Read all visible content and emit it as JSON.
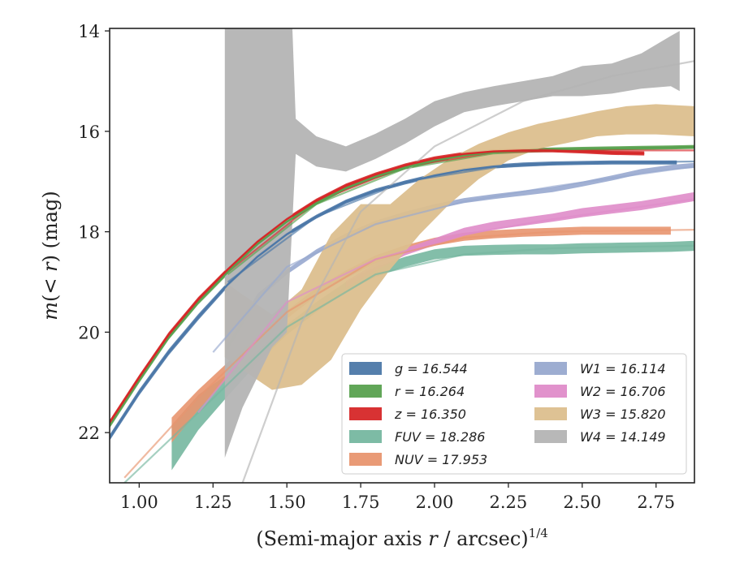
{
  "chart_data": {
    "type": "line",
    "xlabel": "(Semi-major axis r / arcsec)^1/4",
    "ylabel": "m(<r) (mag)",
    "xlim": [
      0.9,
      2.88
    ],
    "ylim": [
      23.0,
      13.95
    ],
    "y_inverted": true,
    "grid": false,
    "legend_placement": "lower-right",
    "xticks": [
      "1.00",
      "1.25",
      "1.50",
      "1.75",
      "2.00",
      "2.25",
      "2.50",
      "2.75"
    ],
    "xtick_values": [
      1.0,
      1.25,
      1.5,
      1.75,
      2.0,
      2.25,
      2.5,
      2.75
    ],
    "yticks": [
      "14",
      "16",
      "18",
      "20",
      "22"
    ],
    "ytick_values": [
      14,
      16,
      18,
      20,
      22
    ],
    "series": [
      {
        "name": "g = 16.544",
        "color": "#4c78a8",
        "x": [
          0.9,
          1.0,
          1.1,
          1.2,
          1.3,
          1.4,
          1.5,
          1.6,
          1.7,
          1.8,
          1.9,
          2.0,
          2.1,
          2.2,
          2.3,
          2.4,
          2.5,
          2.6,
          2.7,
          2.82
        ],
        "y": [
          22.1,
          21.2,
          20.4,
          19.7,
          19.05,
          18.5,
          18.05,
          17.7,
          17.4,
          17.18,
          17.02,
          16.88,
          16.77,
          16.7,
          16.66,
          16.64,
          16.63,
          16.62,
          16.62,
          16.62
        ],
        "band": [
          0.06,
          0.06,
          0.06,
          0.06,
          0.05,
          0.05,
          0.04,
          0.04,
          0.04,
          0.04,
          0.04,
          0.04,
          0.04,
          0.04,
          0.04,
          0.04,
          0.04,
          0.04,
          0.04,
          0.04
        ],
        "model": {
          "x": [
            1.3,
            1.6,
            1.9,
            2.2,
            2.5,
            2.88
          ],
          "y": [
            19.0,
            17.7,
            17.0,
            16.72,
            16.63,
            16.6
          ]
        }
      },
      {
        "name": "r = 16.264",
        "color": "#59a14f",
        "x": [
          0.9,
          1.0,
          1.1,
          1.2,
          1.3,
          1.4,
          1.5,
          1.6,
          1.7,
          1.8,
          1.9,
          2.0,
          2.1,
          2.2,
          2.3,
          2.4,
          2.5,
          2.6,
          2.7,
          2.8,
          2.88
        ],
        "y": [
          21.85,
          20.95,
          20.1,
          19.4,
          18.8,
          18.25,
          17.8,
          17.43,
          17.13,
          16.9,
          16.72,
          16.58,
          16.48,
          16.42,
          16.38,
          16.36,
          16.35,
          16.34,
          16.33,
          16.32,
          16.31
        ],
        "band": [
          0.06,
          0.06,
          0.05,
          0.05,
          0.05,
          0.04,
          0.04,
          0.04,
          0.04,
          0.04,
          0.04,
          0.04,
          0.04,
          0.04,
          0.04,
          0.04,
          0.04,
          0.04,
          0.04,
          0.04,
          0.04
        ],
        "model": {
          "x": [
            1.3,
            1.6,
            1.9,
            2.2,
            2.5,
            2.88
          ],
          "y": [
            18.85,
            17.45,
            16.74,
            16.44,
            16.36,
            16.32
          ]
        }
      },
      {
        "name": "z = 16.350",
        "color": "#d62728",
        "x": [
          0.9,
          1.0,
          1.1,
          1.2,
          1.3,
          1.4,
          1.5,
          1.6,
          1.7,
          1.8,
          1.9,
          2.0,
          2.1,
          2.2,
          2.3,
          2.4,
          2.5,
          2.6,
          2.71
        ],
        "y": [
          21.8,
          20.9,
          20.05,
          19.35,
          18.75,
          18.2,
          17.75,
          17.38,
          17.08,
          16.86,
          16.68,
          16.54,
          16.45,
          16.4,
          16.38,
          16.38,
          16.4,
          16.43,
          16.44
        ],
        "band": [
          0.05,
          0.05,
          0.05,
          0.05,
          0.04,
          0.04,
          0.04,
          0.04,
          0.04,
          0.04,
          0.04,
          0.04,
          0.04,
          0.04,
          0.04,
          0.04,
          0.04,
          0.04,
          0.04
        ],
        "model": {
          "x": [
            1.3,
            1.6,
            1.9,
            2.2,
            2.5,
            2.88
          ],
          "y": [
            18.8,
            17.4,
            16.7,
            16.42,
            16.38,
            16.38
          ]
        }
      },
      {
        "name": "FUV = 18.286",
        "color": "#76b7a0",
        "x": [
          1.11,
          1.2,
          1.3,
          1.4,
          1.5,
          1.6,
          1.7,
          1.8,
          1.9,
          2.0,
          2.1,
          2.2,
          2.3,
          2.4,
          2.5,
          2.6,
          2.7,
          2.8,
          2.88
        ],
        "y": [
          22.3,
          21.6,
          21.05,
          20.5,
          19.95,
          19.5,
          19.1,
          18.8,
          18.6,
          18.45,
          18.38,
          18.36,
          18.35,
          18.35,
          18.33,
          18.32,
          18.31,
          18.3,
          18.28
        ],
        "band": [
          0.45,
          0.35,
          0.22,
          0.12,
          0.1,
          0.1,
          0.1,
          0.1,
          0.1,
          0.1,
          0.1,
          0.1,
          0.1,
          0.1,
          0.1,
          0.1,
          0.1,
          0.1,
          0.1
        ],
        "model": {
          "x": [
            0.95,
            1.2,
            1.5,
            1.8,
            2.1,
            2.4,
            2.88
          ],
          "y": [
            23.0,
            21.6,
            19.9,
            18.85,
            18.45,
            18.33,
            18.28
          ]
        }
      },
      {
        "name": "NUV = 17.953",
        "color": "#e8956f",
        "x": [
          1.11,
          1.2,
          1.3,
          1.4,
          1.5,
          1.6,
          1.7,
          1.8,
          1.9,
          2.0,
          2.1,
          2.2,
          2.3,
          2.4,
          2.5,
          2.6,
          2.7,
          2.8
        ],
        "y": [
          21.95,
          21.35,
          20.75,
          20.2,
          19.65,
          19.2,
          18.85,
          18.55,
          18.35,
          18.2,
          18.1,
          18.05,
          18.02,
          18.0,
          17.98,
          17.98,
          17.98,
          17.98
        ],
        "band": [
          0.25,
          0.2,
          0.15,
          0.1,
          0.08,
          0.08,
          0.08,
          0.08,
          0.08,
          0.08,
          0.08,
          0.08,
          0.08,
          0.08,
          0.08,
          0.08,
          0.08,
          0.08
        ],
        "model": {
          "x": [
            0.95,
            1.2,
            1.5,
            1.8,
            2.1,
            2.4,
            2.88
          ],
          "y": [
            22.9,
            21.3,
            19.6,
            18.55,
            18.12,
            18.0,
            17.96
          ]
        }
      },
      {
        "name": "W1 = 16.114",
        "color": "#98a9cf",
        "x": [
          1.3,
          1.4,
          1.5,
          1.6,
          1.7,
          1.8,
          1.9,
          2.0,
          2.1,
          2.2,
          2.3,
          2.4,
          2.5,
          2.6,
          2.7,
          2.8,
          2.88
        ],
        "y": [
          20.3,
          19.3,
          18.8,
          18.4,
          18.08,
          17.83,
          17.65,
          17.5,
          17.38,
          17.3,
          17.23,
          17.16,
          17.05,
          16.93,
          16.8,
          16.72,
          16.68
        ],
        "band": [
          0.06,
          0.06,
          0.05,
          0.05,
          0.05,
          0.05,
          0.05,
          0.05,
          0.05,
          0.05,
          0.05,
          0.05,
          0.05,
          0.05,
          0.05,
          0.05,
          0.05
        ],
        "model": {
          "x": [
            1.25,
            1.5,
            1.8,
            2.1,
            2.4,
            2.7,
            2.88
          ],
          "y": [
            20.4,
            18.7,
            17.85,
            17.4,
            17.1,
            16.85,
            16.7
          ]
        }
      },
      {
        "name": "W2 = 16.706",
        "color": "#df8cc9",
        "x": [
          1.7,
          1.8,
          1.9,
          2.0,
          2.1,
          2.2,
          2.3,
          2.4,
          2.5,
          2.6,
          2.7,
          2.8,
          2.88
        ],
        "y": [
          19.05,
          18.7,
          18.4,
          18.2,
          18.0,
          17.88,
          17.8,
          17.72,
          17.62,
          17.55,
          17.48,
          17.38,
          17.3
        ],
        "band": [
          0.07,
          0.07,
          0.07,
          0.07,
          0.08,
          0.08,
          0.08,
          0.08,
          0.09,
          0.09,
          0.09,
          0.09,
          0.09
        ],
        "model": {
          "x": [
            1.2,
            1.5,
            1.8,
            2.1,
            2.4,
            2.7,
            2.88
          ],
          "y": [
            21.6,
            19.4,
            18.55,
            18.05,
            17.75,
            17.5,
            17.35
          ]
        }
      },
      {
        "name": "W3 = 15.820",
        "color": "#dcbf8e",
        "x": [
          1.29,
          1.35,
          1.45,
          1.55,
          1.65,
          1.75,
          1.85,
          1.95,
          2.05,
          2.15,
          2.25,
          2.35,
          2.45,
          2.55,
          2.65,
          2.75,
          2.88
        ],
        "y": [
          19.75,
          20.0,
          20.4,
          20.1,
          19.3,
          18.5,
          18.1,
          17.5,
          17.0,
          16.6,
          16.3,
          16.1,
          15.98,
          15.85,
          15.78,
          15.76,
          15.8
        ],
        "band": [
          0.75,
          0.75,
          0.75,
          0.95,
          1.25,
          1.05,
          0.65,
          0.55,
          0.45,
          0.35,
          0.28,
          0.25,
          0.25,
          0.25,
          0.28,
          0.3,
          0.3
        ],
        "model": null
      },
      {
        "name": "W4 = 14.149",
        "color": "#b4b4b4",
        "x": [
          1.29,
          1.35,
          1.45,
          1.5,
          1.53,
          1.6,
          1.7,
          1.8,
          1.9,
          2.0,
          2.1,
          2.2,
          2.3,
          2.4,
          2.5,
          2.6,
          2.7,
          2.8,
          2.83
        ],
        "y": [
          18.0,
          17.0,
          15.8,
          15.5,
          16.1,
          16.4,
          16.55,
          16.3,
          16.0,
          15.65,
          15.42,
          15.3,
          15.2,
          15.1,
          15.0,
          14.95,
          14.8,
          14.6,
          14.6
        ],
        "band": [
          4.5,
          4.5,
          4.5,
          4.5,
          0.35,
          0.3,
          0.25,
          0.25,
          0.25,
          0.25,
          0.2,
          0.2,
          0.2,
          0.2,
          0.3,
          0.3,
          0.35,
          0.5,
          0.6
        ],
        "model": {
          "x": [
            1.35,
            1.55,
            1.75,
            2.0,
            2.3,
            2.6,
            2.88
          ],
          "y": [
            23.0,
            19.8,
            17.6,
            16.3,
            15.4,
            14.9,
            14.6
          ]
        }
      }
    ]
  }
}
